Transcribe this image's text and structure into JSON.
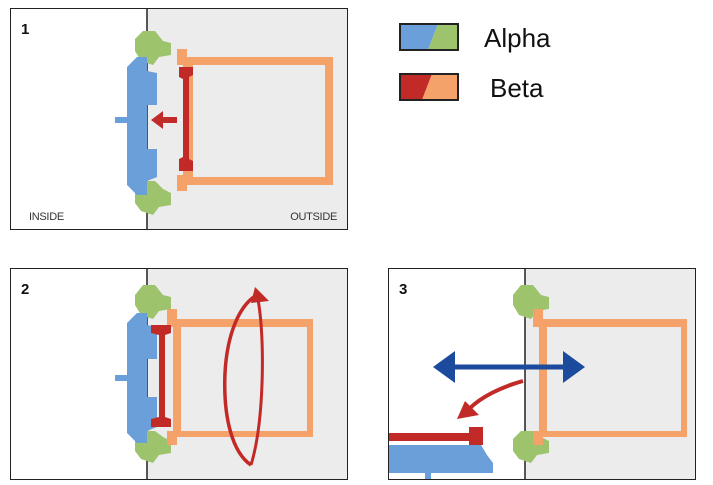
{
  "colors": {
    "alpha_primary": "#6a9fd9",
    "alpha_secondary": "#9dc46c",
    "beta_primary": "#c22a27",
    "beta_secondary": "#f5a26a",
    "panel_bg": "#ececec",
    "blue_arrow": "#1c4a9c"
  },
  "legend": {
    "items": [
      {
        "label": "Alpha",
        "colors": [
          "#6a9fd9",
          "#9dc46c"
        ]
      },
      {
        "label": "Beta",
        "colors": [
          "#c22a27",
          "#f5a26a"
        ]
      }
    ]
  },
  "panels": [
    {
      "number": "1",
      "inside_label": "INSIDE",
      "outside_label": "OUTSIDE"
    },
    {
      "number": "2"
    },
    {
      "number": "3"
    }
  ]
}
